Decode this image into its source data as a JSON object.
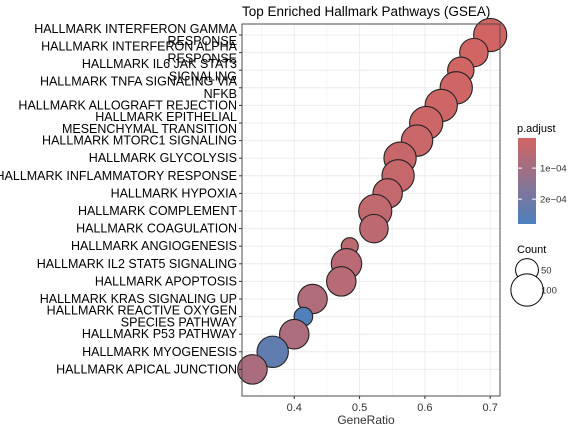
{
  "chart_data": {
    "type": "scatter",
    "title": "Top Enriched Hallmark Pathways (GSEA)",
    "xlabel": "GeneRatio",
    "ylabel": "",
    "xlim": [
      0.32,
      0.715
    ],
    "x_ticks": [
      0.4,
      0.5,
      0.6,
      0.7
    ],
    "x_tick_labels": [
      "0.4",
      "0.5",
      "0.6",
      "0.7"
    ],
    "grid": true,
    "categories": [
      "HALLMARK INTERFERON GAMMA RESPONSE",
      "HALLMARK INTERFERON ALPHA RESPONSE",
      "HALLMARK IL6 JAK STAT3 SIGNALING",
      "HALLMARK TNFA SIGNALING VIA NFKB",
      "HALLMARK ALLOGRAFT REJECTION",
      "HALLMARK EPITHELIAL MESENCHYMAL TRANSITION",
      "HALLMARK MTORC1 SIGNALING",
      "HALLMARK GLYCOLYSIS",
      "HALLMARK INFLAMMATORY RESPONSE",
      "HALLMARK HYPOXIA",
      "HALLMARK COMPLEMENT",
      "HALLMARK COAGULATION",
      "HALLMARK ANGIOGENESIS",
      "HALLMARK IL2 STAT5 SIGNALING",
      "HALLMARK APOPTOSIS",
      "HALLMARK KRAS SIGNALING UP",
      "HALLMARK REACTIVE OXYGEN SPECIES PATHWAY",
      "HALLMARK P53 PATHWAY",
      "HALLMARK MYOGENESIS",
      "HALLMARK APICAL JUNCTION"
    ],
    "category_lines": [
      [
        "HALLMARK INTERFERON GAMMA",
        "RESPONSE"
      ],
      [
        "HALLMARK INTERFERON ALPHA",
        "RESPONSE"
      ],
      [
        "HALLMARK IL6 JAK STAT3",
        "SIGNALING"
      ],
      [
        "HALLMARK TNFA SIGNALING VIA",
        "NFKB"
      ],
      [
        "HALLMARK ALLOGRAFT REJECTION"
      ],
      [
        "HALLMARK EPITHELIAL",
        "MESENCHYMAL TRANSITION"
      ],
      [
        "HALLMARK MTORC1 SIGNALING"
      ],
      [
        "HALLMARK GLYCOLYSIS"
      ],
      [
        "HALLMARK INFLAMMATORY RESPONSE"
      ],
      [
        "HALLMARK HYPOXIA"
      ],
      [
        "HALLMARK COMPLEMENT"
      ],
      [
        "HALLMARK COAGULATION"
      ],
      [
        "HALLMARK ANGIOGENESIS"
      ],
      [
        "HALLMARK IL2 STAT5 SIGNALING"
      ],
      [
        "HALLMARK APOPTOSIS"
      ],
      [
        "HALLMARK KRAS SIGNALING UP"
      ],
      [
        "HALLMARK REACTIVE OXYGEN",
        "SPECIES PATHWAY"
      ],
      [
        "HALLMARK P53 PATHWAY"
      ],
      [
        "HALLMARK MYOGENESIS"
      ],
      [
        "HALLMARK APICAL JUNCTION"
      ]
    ],
    "series": [
      {
        "x": [
          0.7,
          0.675,
          0.655,
          0.648,
          0.625,
          0.602,
          0.588,
          0.562,
          0.559,
          0.543,
          0.524,
          0.522,
          0.485,
          0.48,
          0.472,
          0.428,
          0.414,
          0.4,
          0.367,
          0.336
        ],
        "count": [
          95,
          70,
          60,
          90,
          90,
          95,
          85,
          90,
          90,
          75,
          95,
          70,
          25,
          80,
          75,
          75,
          30,
          75,
          85,
          75
        ],
        "p_adjust": [
          3e-06,
          5e-06,
          7e-06,
          9e-06,
          1.2e-05,
          1.5e-05,
          2e-05,
          2.5e-05,
          2.8e-05,
          3.3e-05,
          4e-05,
          4.6e-05,
          5e-05,
          5.5e-05,
          6e-05,
          7e-05,
          0.00027,
          8e-05,
          0.000235,
          8.5e-05
        ]
      }
    ],
    "legend_color": {
      "title": "p.adjust",
      "ticks": [
        0.0001,
        0.0002
      ],
      "tick_labels": [
        "1e−04",
        "2e−04"
      ],
      "range": [
        3e-06,
        0.00028
      ],
      "color_low": "#d26563",
      "color_high": "#4b80bd"
    },
    "legend_size": {
      "title": "Count",
      "values": [
        50,
        100
      ],
      "labels": [
        "50",
        "100"
      ]
    },
    "colors": {
      "panel_background": "#ffffff",
      "grid": "#ececec",
      "panel_border": "#4d4d4d",
      "point_stroke": "#222222"
    }
  }
}
